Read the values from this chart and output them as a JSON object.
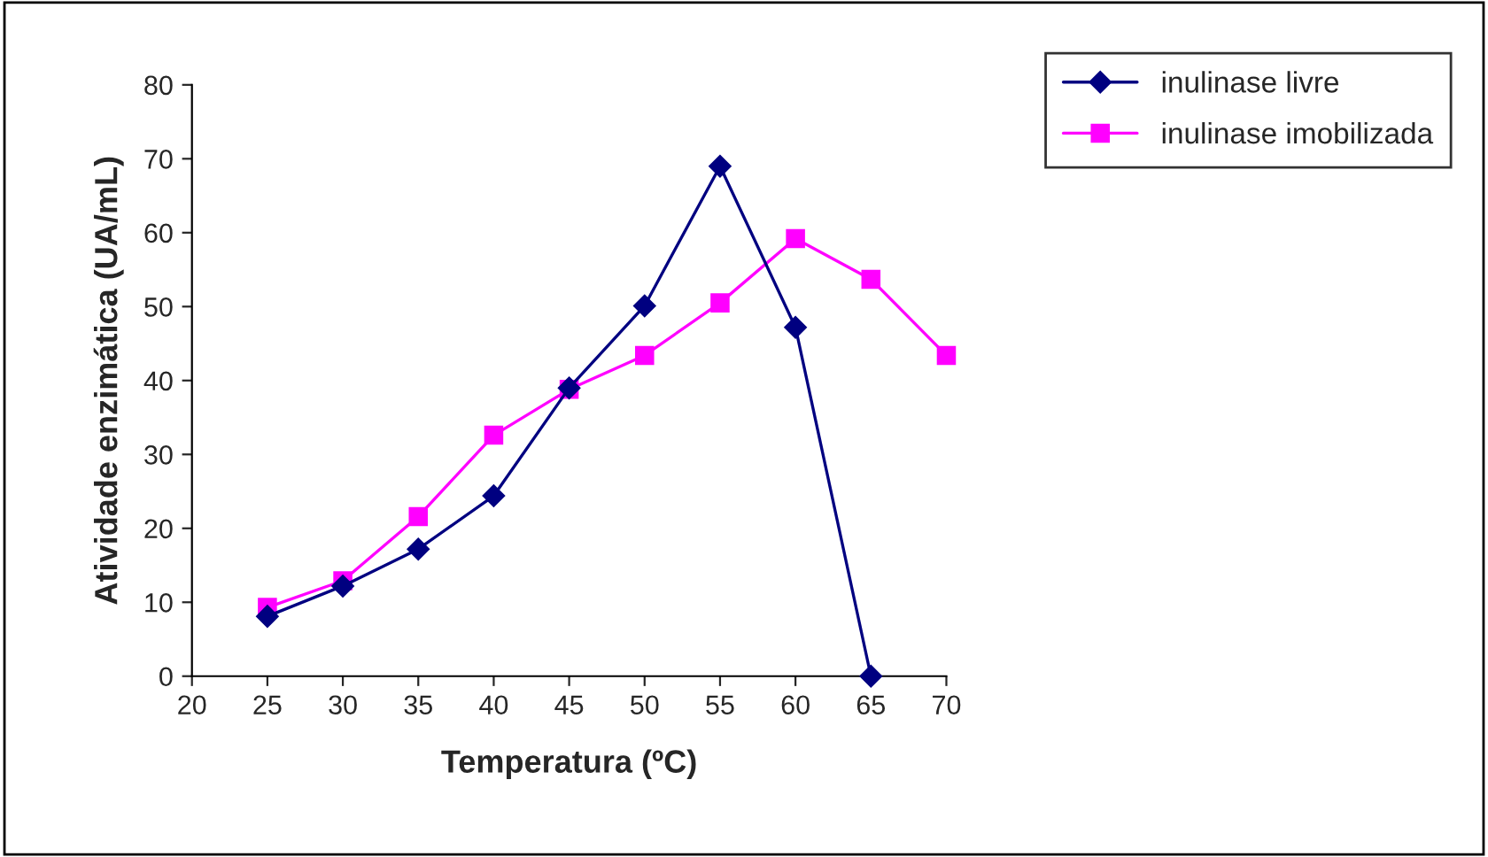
{
  "chart_data": {
    "type": "line",
    "xlabel": "Temperatura (ºC)",
    "ylabel": "Atividade enzimática (UA/mL)",
    "xlim": [
      20,
      70
    ],
    "xticks": [
      20,
      25,
      30,
      35,
      40,
      45,
      50,
      55,
      60,
      65,
      70
    ],
    "ylim": [
      0,
      80
    ],
    "yticks": [
      0,
      10,
      20,
      30,
      40,
      50,
      60,
      70,
      80
    ],
    "grid": false,
    "legend": "top right",
    "series": [
      {
        "name": "inulinase livre",
        "color": "#000080",
        "marker": "diamond",
        "x": [
          25,
          30,
          35,
          40,
          45,
          50,
          55,
          60,
          65
        ],
        "values": [
          8.1,
          12.2,
          17.2,
          24.4,
          39.0,
          50.1,
          69.0,
          47.2,
          0
        ]
      },
      {
        "name": "inulinase imobilizada",
        "color": "#ff00ff",
        "marker": "square",
        "x": [
          25,
          30,
          35,
          40,
          45,
          50,
          55,
          60,
          65,
          70
        ],
        "values": [
          9.3,
          12.9,
          21.6,
          32.6,
          38.8,
          43.4,
          50.5,
          59.2,
          53.7,
          43.4
        ]
      }
    ]
  }
}
